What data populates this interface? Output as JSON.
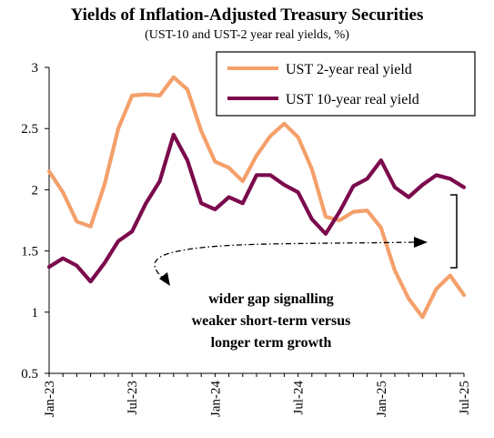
{
  "title": "Yields of Inflation-Adjusted Treasury Securities",
  "subtitle": "(UST-10 and UST-2 year real yields, %)",
  "chart_data": {
    "type": "line",
    "x": [
      "2023-01",
      "2023-02",
      "2023-03",
      "2023-04",
      "2023-05",
      "2023-06",
      "2023-07",
      "2023-08",
      "2023-09",
      "2023-10",
      "2023-11",
      "2023-12",
      "2024-01",
      "2024-02",
      "2024-03",
      "2024-04",
      "2024-05",
      "2024-06",
      "2024-07",
      "2024-08",
      "2024-09",
      "2024-10",
      "2024-11",
      "2024-12",
      "2025-01",
      "2025-02",
      "2025-03",
      "2025-04",
      "2025-05",
      "2025-06",
      "2025-07"
    ],
    "x_tick_labels": [
      "Jan-23",
      "Jul-23",
      "Jan-24",
      "Jul-24",
      "Jan-25",
      "Jul-25"
    ],
    "x_tick_values": [
      "2023-01",
      "2023-07",
      "2024-01",
      "2024-07",
      "2025-01",
      "2025-07"
    ],
    "ylim": [
      0.5,
      3
    ],
    "y_ticks": [
      "0.5",
      "1",
      "1.5",
      "2",
      "2.5",
      "3"
    ],
    "legend_position": "top-right",
    "grid": false,
    "series": [
      {
        "name": "UST 2-year real yield",
        "color": "#F4A06B",
        "values": [
          2.15,
          1.98,
          1.74,
          1.7,
          2.04,
          2.5,
          2.77,
          2.78,
          2.77,
          2.92,
          2.82,
          2.48,
          2.23,
          2.18,
          2.07,
          2.28,
          2.44,
          2.54,
          2.43,
          2.17,
          1.78,
          1.75,
          1.82,
          1.83,
          1.69,
          1.34,
          1.11,
          0.96,
          1.19,
          1.3,
          1.14
        ]
      },
      {
        "name": "UST 10-year real yield",
        "color": "#7B0B4C",
        "values": [
          1.37,
          1.44,
          1.38,
          1.25,
          1.4,
          1.58,
          1.66,
          1.89,
          2.07,
          2.45,
          2.24,
          1.89,
          1.84,
          1.94,
          1.89,
          2.12,
          2.12,
          2.04,
          1.98,
          1.76,
          1.64,
          1.82,
          2.03,
          2.09,
          2.24,
          2.02,
          1.94,
          2.04,
          2.12,
          2.09,
          2.02
        ]
      }
    ],
    "annotation": {
      "lines": [
        "wider gap signalling",
        "weaker short-term versus",
        "longer term growth"
      ]
    }
  }
}
